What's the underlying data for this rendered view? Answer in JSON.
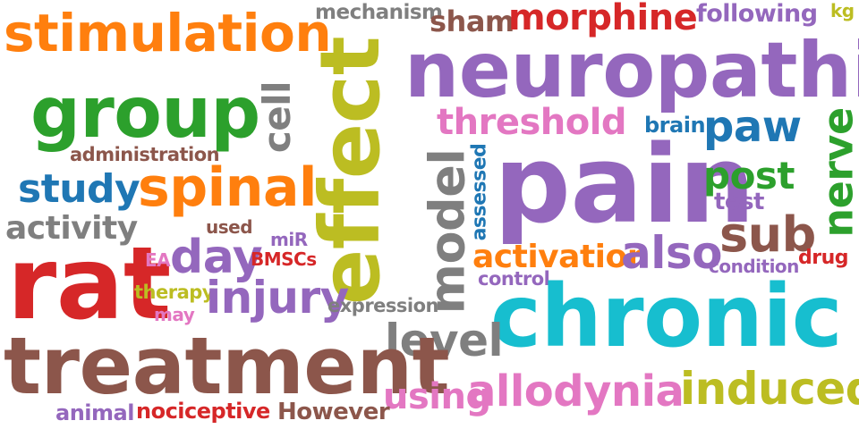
{
  "colors": {
    "orange": "#ff7f0e",
    "green": "#2ca02c",
    "purple": "#9467bd",
    "brown": "#8c564b",
    "red": "#d62728",
    "gray": "#7f7f7f",
    "olive": "#bcbd22",
    "cyan": "#17becf",
    "pink": "#e377c2",
    "blue": "#1f77b4"
  },
  "words": [
    {
      "text": "stimulation",
      "color": "#ff7f0e"
    },
    {
      "text": "mechanism",
      "color": "#7f7f7f"
    },
    {
      "text": "sham",
      "color": "#8c564b"
    },
    {
      "text": "morphine",
      "color": "#d62728"
    },
    {
      "text": "following",
      "color": "#9467bd"
    },
    {
      "text": "kg",
      "color": "#bcbd22"
    },
    {
      "text": "effect",
      "color": "#bcbd22"
    },
    {
      "text": "neuropathic",
      "color": "#9467bd"
    },
    {
      "text": "group",
      "color": "#2ca02c"
    },
    {
      "text": "cell",
      "color": "#7f7f7f"
    },
    {
      "text": "threshold",
      "color": "#e377c2"
    },
    {
      "text": "brain",
      "color": "#1f77b4"
    },
    {
      "text": "paw",
      "color": "#1f77b4"
    },
    {
      "text": "administration",
      "color": "#8c564b"
    },
    {
      "text": "study",
      "color": "#1f77b4"
    },
    {
      "text": "spinal",
      "color": "#ff7f0e"
    },
    {
      "text": "model",
      "color": "#7f7f7f"
    },
    {
      "text": "assessed",
      "color": "#1f77b4"
    },
    {
      "text": "pain",
      "color": "#9467bd"
    },
    {
      "text": "post",
      "color": "#2ca02c"
    },
    {
      "text": "nerve",
      "color": "#2ca02c"
    },
    {
      "text": "test",
      "color": "#9467bd"
    },
    {
      "text": "activity",
      "color": "#7f7f7f"
    },
    {
      "text": "used",
      "color": "#8c564b"
    },
    {
      "text": "sub",
      "color": "#8c564b"
    },
    {
      "text": "miR",
      "color": "#9467bd"
    },
    {
      "text": "rat",
      "color": "#d62728"
    },
    {
      "text": "EA",
      "color": "#e377c2"
    },
    {
      "text": "day",
      "color": "#9467bd"
    },
    {
      "text": "BMSCs",
      "color": "#d62728"
    },
    {
      "text": "activation",
      "color": "#ff7f0e"
    },
    {
      "text": "also",
      "color": "#9467bd"
    },
    {
      "text": "condition",
      "color": "#9467bd"
    },
    {
      "text": "drug",
      "color": "#d62728"
    },
    {
      "text": "control",
      "color": "#9467bd"
    },
    {
      "text": "therapy",
      "color": "#bcbd22"
    },
    {
      "text": "injury",
      "color": "#9467bd"
    },
    {
      "text": "may",
      "color": "#e377c2"
    },
    {
      "text": "expression",
      "color": "#7f7f7f"
    },
    {
      "text": "chronic",
      "color": "#17becf"
    },
    {
      "text": "level",
      "color": "#7f7f7f"
    },
    {
      "text": "treatment",
      "color": "#8c564b"
    },
    {
      "text": "using",
      "color": "#e377c2"
    },
    {
      "text": "allodynia",
      "color": "#e377c2"
    },
    {
      "text": "induced",
      "color": "#bcbd22"
    },
    {
      "text": "animal",
      "color": "#9467bd"
    },
    {
      "text": "nociceptive",
      "color": "#d62728"
    },
    {
      "text": "However",
      "color": "#8c564b"
    }
  ]
}
